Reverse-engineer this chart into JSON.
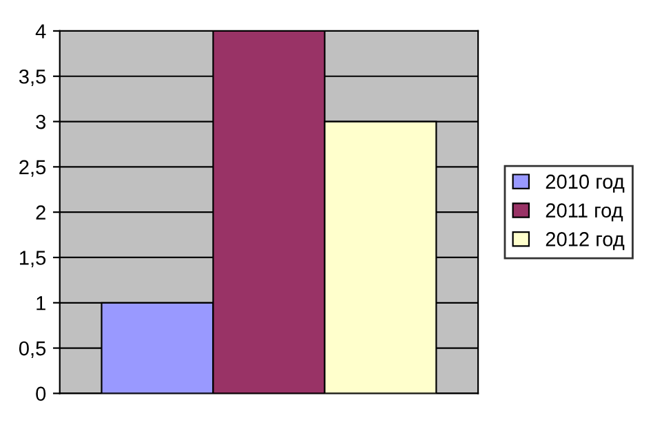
{
  "chart_data": {
    "type": "bar",
    "categories": [
      null
    ],
    "series": [
      {
        "name": "2010 год",
        "color": "#9999ff",
        "values": [
          1
        ]
      },
      {
        "name": "2011 год",
        "color": "#993366",
        "values": [
          4
        ]
      },
      {
        "name": "2012 год",
        "color": "#ffffcc",
        "values": [
          3
        ]
      }
    ],
    "ylim": [
      0,
      4
    ],
    "yticks": [
      0,
      {
        "value": 0.5,
        "label": "0,5"
      },
      1,
      {
        "value": 1.5,
        "label": "1,5"
      },
      2,
      {
        "value": 2.5,
        "label": "2,5"
      },
      3,
      {
        "value": 3.5,
        "label": "3,5"
      },
      4
    ],
    "grid": "y",
    "legend": "right"
  }
}
